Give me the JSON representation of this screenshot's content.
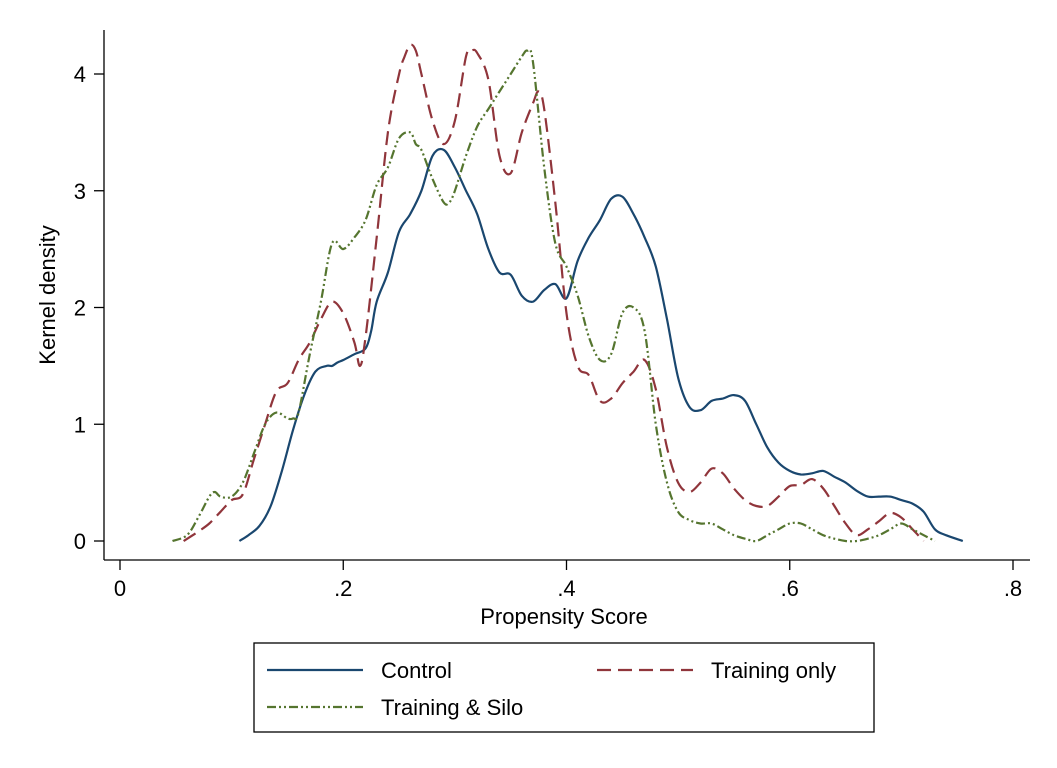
{
  "chart_data": {
    "type": "line",
    "title": "",
    "xlabel": "Propensity Score",
    "ylabel": "Kernel density",
    "xlim": [
      0,
      0.8
    ],
    "ylim": [
      0,
      4
    ],
    "xticks": [
      0,
      0.2,
      0.4,
      0.6,
      0.8
    ],
    "xtick_labels": [
      "0",
      ".2",
      ".4",
      ".6",
      ".8"
    ],
    "yticks": [
      0,
      1,
      2,
      3,
      4
    ],
    "ytick_labels": [
      "0",
      "1",
      "2",
      "3",
      "4"
    ],
    "grid": false,
    "legend_position": "bottom",
    "series": [
      {
        "name": "Control",
        "color": "#1a476f",
        "dash": "solid",
        "x": [
          0.107,
          0.115,
          0.125,
          0.135,
          0.145,
          0.155,
          0.165,
          0.175,
          0.185,
          0.19,
          0.195,
          0.2,
          0.21,
          0.22,
          0.225,
          0.23,
          0.24,
          0.25,
          0.26,
          0.27,
          0.28,
          0.29,
          0.3,
          0.31,
          0.32,
          0.33,
          0.34,
          0.35,
          0.36,
          0.37,
          0.38,
          0.39,
          0.4,
          0.41,
          0.42,
          0.43,
          0.44,
          0.45,
          0.46,
          0.47,
          0.48,
          0.49,
          0.5,
          0.51,
          0.52,
          0.53,
          0.54,
          0.55,
          0.56,
          0.57,
          0.58,
          0.59,
          0.6,
          0.61,
          0.62,
          0.63,
          0.64,
          0.65,
          0.66,
          0.67,
          0.68,
          0.69,
          0.7,
          0.71,
          0.72,
          0.73,
          0.74,
          0.755
        ],
        "y": [
          0.0,
          0.05,
          0.13,
          0.3,
          0.6,
          0.95,
          1.25,
          1.45,
          1.5,
          1.5,
          1.53,
          1.55,
          1.6,
          1.65,
          1.8,
          2.05,
          2.3,
          2.65,
          2.8,
          3.0,
          3.3,
          3.35,
          3.2,
          3.0,
          2.8,
          2.5,
          2.3,
          2.28,
          2.1,
          2.05,
          2.15,
          2.2,
          2.08,
          2.4,
          2.6,
          2.75,
          2.93,
          2.95,
          2.8,
          2.6,
          2.35,
          1.9,
          1.4,
          1.15,
          1.12,
          1.2,
          1.22,
          1.25,
          1.2,
          1.0,
          0.8,
          0.67,
          0.6,
          0.57,
          0.58,
          0.6,
          0.55,
          0.5,
          0.43,
          0.38,
          0.38,
          0.38,
          0.35,
          0.32,
          0.25,
          0.1,
          0.05,
          0.0
        ]
      },
      {
        "name": "Training only",
        "color": "#90353b",
        "dash": "long-dash",
        "x": [
          0.057,
          0.07,
          0.08,
          0.09,
          0.1,
          0.11,
          0.12,
          0.13,
          0.14,
          0.15,
          0.16,
          0.17,
          0.18,
          0.19,
          0.2,
          0.21,
          0.215,
          0.22,
          0.23,
          0.24,
          0.25,
          0.255,
          0.26,
          0.265,
          0.27,
          0.28,
          0.29,
          0.3,
          0.31,
          0.315,
          0.32,
          0.33,
          0.34,
          0.35,
          0.36,
          0.37,
          0.375,
          0.38,
          0.39,
          0.4,
          0.41,
          0.42,
          0.43,
          0.44,
          0.45,
          0.46,
          0.47,
          0.48,
          0.49,
          0.5,
          0.51,
          0.52,
          0.53,
          0.54,
          0.55,
          0.56,
          0.57,
          0.58,
          0.59,
          0.6,
          0.61,
          0.62,
          0.63,
          0.64,
          0.65,
          0.66,
          0.67,
          0.68,
          0.69,
          0.7,
          0.71,
          0.72
        ],
        "y": [
          0.0,
          0.08,
          0.15,
          0.25,
          0.35,
          0.4,
          0.7,
          1.0,
          1.28,
          1.35,
          1.55,
          1.7,
          1.9,
          2.05,
          1.95,
          1.7,
          1.5,
          1.75,
          2.6,
          3.5,
          4.0,
          4.15,
          4.25,
          4.2,
          4.0,
          3.6,
          3.4,
          3.6,
          4.15,
          4.2,
          4.18,
          3.95,
          3.3,
          3.15,
          3.5,
          3.75,
          3.85,
          3.7,
          2.9,
          1.95,
          1.5,
          1.42,
          1.2,
          1.22,
          1.35,
          1.45,
          1.55,
          1.3,
          0.8,
          0.5,
          0.42,
          0.5,
          0.62,
          0.58,
          0.45,
          0.35,
          0.3,
          0.3,
          0.38,
          0.47,
          0.48,
          0.53,
          0.45,
          0.3,
          0.15,
          0.05,
          0.1,
          0.17,
          0.24,
          0.2,
          0.1,
          0.0
        ]
      },
      {
        "name": "Training & Silo",
        "color": "#55752f",
        "dash": "dash-dot-dot",
        "x": [
          0.047,
          0.06,
          0.07,
          0.08,
          0.085,
          0.09,
          0.1,
          0.11,
          0.12,
          0.13,
          0.14,
          0.15,
          0.155,
          0.16,
          0.17,
          0.18,
          0.19,
          0.2,
          0.21,
          0.22,
          0.23,
          0.24,
          0.25,
          0.26,
          0.265,
          0.27,
          0.28,
          0.29,
          0.295,
          0.3,
          0.31,
          0.32,
          0.33,
          0.34,
          0.35,
          0.36,
          0.365,
          0.37,
          0.38,
          0.39,
          0.4,
          0.41,
          0.42,
          0.43,
          0.44,
          0.45,
          0.46,
          0.47,
          0.48,
          0.49,
          0.5,
          0.51,
          0.52,
          0.53,
          0.54,
          0.55,
          0.56,
          0.57,
          0.58,
          0.59,
          0.6,
          0.61,
          0.62,
          0.63,
          0.64,
          0.65,
          0.66,
          0.67,
          0.68,
          0.69,
          0.7,
          0.71,
          0.72,
          0.73
        ],
        "y": [
          0.0,
          0.05,
          0.2,
          0.38,
          0.42,
          0.38,
          0.38,
          0.5,
          0.75,
          1.0,
          1.1,
          1.05,
          1.05,
          1.1,
          1.6,
          2.05,
          2.55,
          2.5,
          2.6,
          2.75,
          3.05,
          3.2,
          3.45,
          3.5,
          3.4,
          3.35,
          3.1,
          2.9,
          2.9,
          3.0,
          3.3,
          3.55,
          3.7,
          3.85,
          4.0,
          4.15,
          4.2,
          4.1,
          3.2,
          2.55,
          2.35,
          2.1,
          1.75,
          1.55,
          1.6,
          1.95,
          2.0,
          1.8,
          1.0,
          0.5,
          0.25,
          0.18,
          0.15,
          0.15,
          0.1,
          0.05,
          0.02,
          0.0,
          0.05,
          0.1,
          0.15,
          0.15,
          0.1,
          0.05,
          0.02,
          0.0,
          0.0,
          0.02,
          0.05,
          0.1,
          0.15,
          0.1,
          0.05,
          0.0
        ]
      }
    ]
  },
  "legend": {
    "items": [
      {
        "label": "Control"
      },
      {
        "label": "Training only"
      },
      {
        "label": "Training & Silo"
      }
    ]
  }
}
